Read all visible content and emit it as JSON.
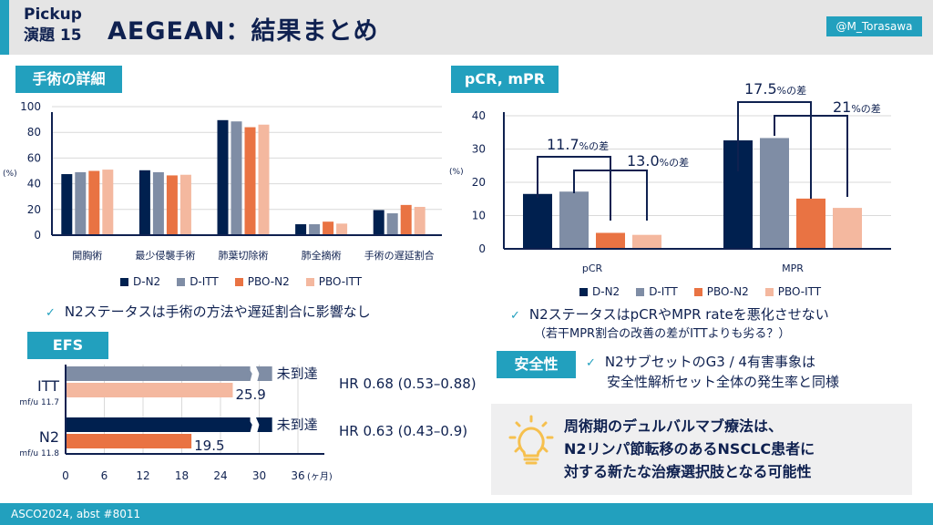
{
  "header": {
    "pickup_line1": "Pickup",
    "pickup_line2": "演題 15",
    "title": "AEGEAN：結果まとめ",
    "handle": "@M_Torasawa"
  },
  "colors": {
    "accent": "#22a0be",
    "navy": "#0f2150",
    "d_n2": "#00204f",
    "d_itt": "#7f8da5",
    "pbo_n2": "#e97343",
    "pbo_itt": "#f4b89f"
  },
  "sections": {
    "surgery": "手術の詳細",
    "pcr": "pCR, mPR",
    "efs": "EFS",
    "safety": "安全性"
  },
  "legend": [
    "D-N2",
    "D-ITT",
    "PBO-N2",
    "PBO-ITT"
  ],
  "notes": {
    "surgery": "N2ステータスは手術の方法や遅延割合に影響なし",
    "pcr_line1": "N2ステータスはpCRやMPR rateを悪化させない",
    "pcr_line2": "（若干MPR割合の改善の差がITTよりも劣る？）",
    "safety_line1": "N2サブセットのG3 / 4有害事象は",
    "safety_line2": "安全性解析セット全体の発生率と同様"
  },
  "conclusion": {
    "icon": "lightbulb-icon",
    "lines": [
      "周術期のデュルバルマブ療法は、",
      "N2リンパ節転移のあるNSCLC患者に",
      "対する新たな治療選択肢となる可能性"
    ]
  },
  "footer": "ASCO2024, abst #8011",
  "chart_data": [
    {
      "type": "bar",
      "title": "手術の詳細",
      "ylabel": "(%)",
      "ylim": [
        0,
        100
      ],
      "yticks": [
        "0",
        "20",
        "40",
        "60",
        "80",
        "100"
      ],
      "grid": true,
      "legend_position": "bottom",
      "categories": [
        "開胸術",
        "最少侵襲手術",
        "肺葉切除術",
        "肺全摘術",
        "手術の遅延割合"
      ],
      "series": [
        {
          "name": "D-N2",
          "values": [
            47.5,
            50.5,
            89.5,
            8.5,
            19.5
          ]
        },
        {
          "name": "D-ITT",
          "values": [
            49,
            49,
            88.5,
            8.5,
            17
          ]
        },
        {
          "name": "PBO-N2",
          "values": [
            50,
            46.5,
            84,
            10.5,
            23.5
          ]
        },
        {
          "name": "PBO-ITT",
          "values": [
            51,
            47,
            86,
            9,
            22
          ]
        }
      ]
    },
    {
      "type": "bar",
      "title": "pCR, mPR",
      "ylabel": "(%)",
      "ylim": [
        0,
        40
      ],
      "yticks": [
        "0",
        "10",
        "20",
        "30",
        "40"
      ],
      "grid": true,
      "legend_position": "bottom",
      "categories": [
        "pCR",
        "MPR"
      ],
      "series": [
        {
          "name": "D-N2",
          "values": [
            16.5,
            32.6
          ]
        },
        {
          "name": "D-ITT",
          "values": [
            17.2,
            33.3
          ]
        },
        {
          "name": "PBO-N2",
          "values": [
            4.8,
            15.1
          ]
        },
        {
          "name": "PBO-ITT",
          "values": [
            4.2,
            12.3
          ]
        }
      ],
      "annotations": [
        {
          "num": "11.7",
          "unit": "%の差"
        },
        {
          "num": "13.0",
          "unit": "%の差"
        },
        {
          "num": "17.5",
          "unit": "%の差"
        },
        {
          "num": "21",
          "unit": "%の差"
        }
      ]
    },
    {
      "type": "bar",
      "orientation": "horizontal",
      "title": "EFS",
      "xlabel": "(ヶ月)",
      "xlim": [
        0,
        36
      ],
      "xticks": [
        "0",
        "6",
        "12",
        "18",
        "24",
        "30",
        "36"
      ],
      "grid": true,
      "groups": [
        {
          "label": "ITT",
          "sublabel": "mf/u 11.7",
          "bars": [
            {
              "series": "D-ITT",
              "value": 32,
              "label": "未到達",
              "broken": true
            },
            {
              "series": "PBO-ITT",
              "value": 25.9,
              "label": "25.9"
            }
          ],
          "hr": "HR 0.68 (0.53–0.88)"
        },
        {
          "label": "N2",
          "sublabel": "mf/u 11.8",
          "bars": [
            {
              "series": "D-N2",
              "value": 32,
              "label": "未到達",
              "broken": true
            },
            {
              "series": "PBO-N2",
              "value": 19.5,
              "label": "19.5"
            }
          ],
          "hr": "HR 0.63 (0.43–0.9)"
        }
      ]
    }
  ]
}
